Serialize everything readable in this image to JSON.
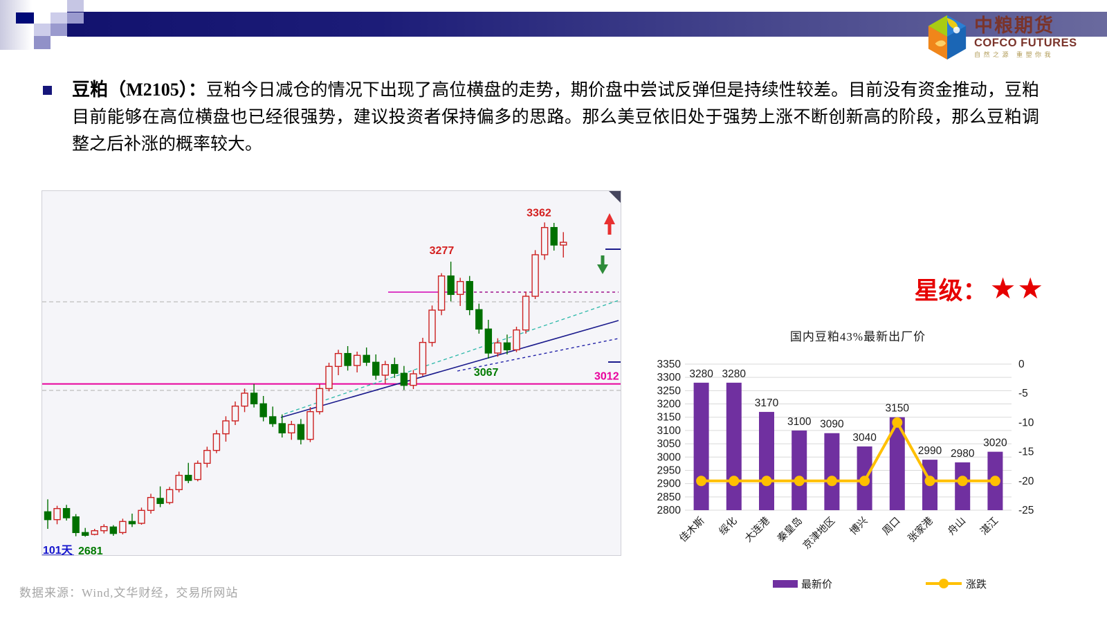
{
  "logo": {
    "name_cn": "中粮期货",
    "name_en": "COFCO FUTURES",
    "tagline": "自然之源 重塑你我"
  },
  "commentary": {
    "bold_label": "豆粕（M2105）：",
    "body": "豆粕今日减仓的情况下出现了高位横盘的走势，期价盘中尝试反弹但是持续性较差。目前没有资金推动，豆粕目前能够在高位横盘也已经很强势，建议投资者保持偏多的思路。那么美豆依旧处于强势上涨不断创新高的阶段，那么豆粕调整之后补涨的概率较大。"
  },
  "rating": {
    "label": "星级：",
    "stars": "★★"
  },
  "footer": {
    "source": "数据来源：Wind,文华财经，交易所网站"
  },
  "chart_data": [
    {
      "type": "candlestick",
      "instrument": "M2105",
      "period_label": "101天",
      "key_levels": {
        "recent_high": 3362,
        "prior_peak": 3277,
        "trough": 3067,
        "support_line": 3012,
        "period_low": 2681
      },
      "annotations": [
        {
          "text": "3362",
          "color": "#d42020",
          "anchor_index": 53
        },
        {
          "text": "3277",
          "color": "#d42020",
          "anchor_index": 43
        },
        {
          "text": "3067",
          "color": "#007a00",
          "anchor_index": 47
        },
        {
          "text": "3012",
          "color": "#e8009c",
          "position": "right-support"
        },
        {
          "text": "2681",
          "color": "#007a00",
          "position": "bottom-low"
        },
        {
          "text": "101天",
          "color": "#1414cc",
          "position": "bottom-left"
        }
      ],
      "colors": {
        "up": "#cc2020",
        "down": "#007000",
        "support": "#e8009c",
        "trend_solid": "#1a1a8c",
        "trend_cyan": "#2ab8a8",
        "grid_dash": "#bdbdbd",
        "background": "#f5f5f9"
      },
      "candles": [
        [
          2735,
          2762,
          2698,
          2718
        ],
        [
          2718,
          2748,
          2708,
          2742
        ],
        [
          2742,
          2750,
          2716,
          2722
        ],
        [
          2724,
          2730,
          2682,
          2690
        ],
        [
          2690,
          2700,
          2681,
          2684
        ],
        [
          2686,
          2698,
          2684,
          2694
        ],
        [
          2694,
          2708,
          2688,
          2703
        ],
        [
          2702,
          2706,
          2683,
          2688
        ],
        [
          2690,
          2720,
          2686,
          2714
        ],
        [
          2714,
          2731,
          2702,
          2709
        ],
        [
          2710,
          2744,
          2707,
          2738
        ],
        [
          2738,
          2774,
          2731,
          2766
        ],
        [
          2764,
          2790,
          2745,
          2753
        ],
        [
          2755,
          2789,
          2751,
          2783
        ],
        [
          2783,
          2822,
          2777,
          2814
        ],
        [
          2814,
          2841,
          2797,
          2803
        ],
        [
          2805,
          2846,
          2801,
          2840
        ],
        [
          2840,
          2876,
          2831,
          2868
        ],
        [
          2868,
          2912,
          2862,
          2904
        ],
        [
          2904,
          2942,
          2887,
          2932
        ],
        [
          2932,
          2974,
          2923,
          2964
        ],
        [
          2964,
          3002,
          2951,
          2992
        ],
        [
          2992,
          3012,
          2961,
          2969
        ],
        [
          2969,
          2986,
          2931,
          2941
        ],
        [
          2941,
          2963,
          2919,
          2926
        ],
        [
          2926,
          2946,
          2896,
          2906
        ],
        [
          2906,
          2932,
          2891,
          2924
        ],
        [
          2924,
          2936,
          2881,
          2892
        ],
        [
          2892,
          2962,
          2886,
          2952
        ],
        [
          2952,
          3012,
          2946,
          3002
        ],
        [
          3002,
          3058,
          2996,
          3050
        ],
        [
          3050,
          3086,
          3031,
          3078
        ],
        [
          3078,
          3094,
          3041,
          3052
        ],
        [
          3052,
          3082,
          3037,
          3074
        ],
        [
          3074,
          3091,
          3051,
          3059
        ],
        [
          3059,
          3076,
          3021,
          3031
        ],
        [
          3031,
          3062,
          3013,
          3054
        ],
        [
          3054,
          3069,
          3025,
          3035
        ],
        [
          3035,
          3051,
          2999,
          3009
        ],
        [
          3009,
          3042,
          3001,
          3034
        ],
        [
          3034,
          3112,
          3029,
          3102
        ],
        [
          3102,
          3182,
          3093,
          3172
        ],
        [
          3172,
          3252,
          3161,
          3246
        ],
        [
          3246,
          3277,
          3191,
          3206
        ],
        [
          3206,
          3242,
          3181,
          3234
        ],
        [
          3234,
          3246,
          3161,
          3173
        ],
        [
          3173,
          3186,
          3121,
          3131
        ],
        [
          3131,
          3151,
          3067,
          3079
        ],
        [
          3079,
          3111,
          3071,
          3101
        ],
        [
          3101,
          3119,
          3076,
          3086
        ],
        [
          3086,
          3136,
          3081,
          3129
        ],
        [
          3129,
          3212,
          3121,
          3202
        ],
        [
          3202,
          3302,
          3196,
          3292
        ],
        [
          3292,
          3362,
          3281,
          3351
        ],
        [
          3351,
          3361,
          3301,
          3313
        ],
        [
          3313,
          3341,
          3286,
          3319
        ]
      ]
    },
    {
      "type": "bar",
      "title": "国内豆粕43%最新出厂价",
      "categories": [
        "佳木斯",
        "绥化",
        "大连港",
        "秦皇岛",
        "京津地区",
        "博兴",
        "周口",
        "张家港",
        "舟山",
        "湛江"
      ],
      "series": [
        {
          "name": "最新价",
          "type": "bar",
          "axis": "left",
          "color": "#7030A0",
          "values": [
            3280,
            3280,
            3170,
            3100,
            3090,
            3040,
            3150,
            2990,
            2980,
            3020
          ]
        },
        {
          "name": "涨跌",
          "type": "line",
          "axis": "right",
          "color": "#FFC000",
          "values": [
            -20,
            -20,
            -20,
            -20,
            -20,
            -20,
            -10,
            -20,
            -20,
            -20
          ]
        }
      ],
      "left_axis": {
        "min": 2800,
        "max": 3350,
        "step": 50
      },
      "right_axis": {
        "min": -25,
        "max": 0,
        "step": 5
      },
      "grid": true,
      "legend_position": "bottom"
    }
  ]
}
